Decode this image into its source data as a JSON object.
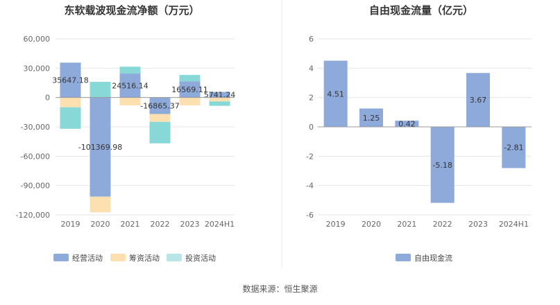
{
  "chart_data": [
    {
      "type": "bar",
      "stacked": true,
      "title": "东软载波现金流净额（万元）",
      "categories": [
        "2019",
        "2020",
        "2021",
        "2022",
        "2023",
        "2024H1"
      ],
      "yticks": [
        "60,000",
        "30,000",
        "0",
        "-30,000",
        "-60,000",
        "-90,000",
        "-120,000"
      ],
      "ylim": [
        -120000,
        60000
      ],
      "series": [
        {
          "name": "经营活动",
          "color": "#8eaadb",
          "values": [
            35647.18,
            -101369.98,
            24516.14,
            -16865.37,
            16569.11,
            5741.24
          ]
        },
        {
          "name": "筹资活动",
          "color": "#fde0b0",
          "values": [
            -10000,
            -16000,
            -8000,
            -8000,
            -8000,
            -4000
          ]
        },
        {
          "name": "投资活动",
          "color": "#88d8d8",
          "values": [
            -22000,
            16000,
            7000,
            -22000,
            6500,
            -4500
          ]
        }
      ],
      "labels": [
        "35647.18",
        "-101369.98",
        "24516.14",
        "-16865.37",
        "16569.11",
        "5741.24"
      ]
    },
    {
      "type": "bar",
      "title": "自由现金流量（亿元）",
      "categories": [
        "2019",
        "2020",
        "2021",
        "2022",
        "2023",
        "2024H1"
      ],
      "yticks": [
        "6",
        "4",
        "2",
        "0",
        "-2",
        "-4",
        "-6"
      ],
      "ylim": [
        -6,
        6
      ],
      "series": [
        {
          "name": "自由现金流",
          "color": "#8eaadb",
          "values": [
            4.51,
            1.25,
            0.42,
            -5.18,
            3.67,
            -2.81
          ]
        }
      ],
      "labels": [
        "4.51",
        "1.25",
        "0.42",
        "-5.18",
        "3.67",
        "-2.81"
      ]
    }
  ],
  "source": "数据来源：恒生聚源"
}
